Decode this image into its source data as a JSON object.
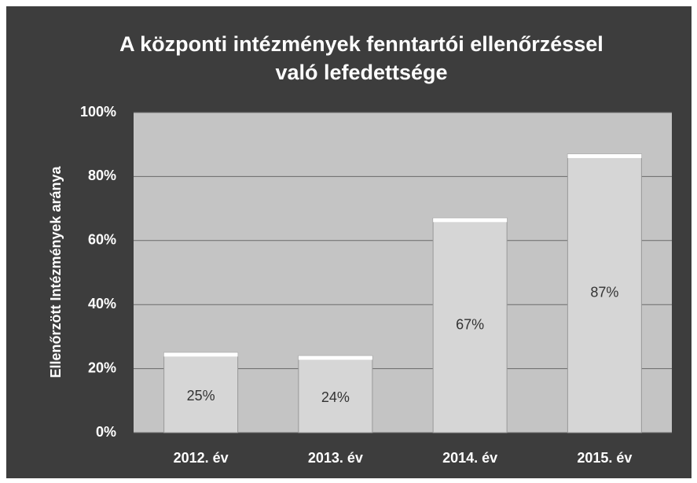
{
  "chart_data": {
    "type": "bar",
    "title": "A központi intézmények fenntartói ellenőrzéssel való lefedettsége",
    "y_label": "Ellenőrzött Intézmények aránya",
    "categories": [
      "2012. év",
      "2013. év",
      "2014. év",
      "2015. év"
    ],
    "values": [
      25,
      24,
      67,
      87
    ],
    "value_labels": [
      "25%",
      "24%",
      "67%",
      "87%"
    ],
    "color": "#d6d6d6",
    "ylim": [
      0,
      100
    ],
    "yticks": [
      {
        "value": 0,
        "label": "0%"
      },
      {
        "value": 20,
        "label": "20%"
      },
      {
        "value": 40,
        "label": "40%"
      },
      {
        "value": 60,
        "label": "60%"
      },
      {
        "value": 80,
        "label": "80%"
      },
      {
        "value": 100,
        "label": "100%"
      }
    ],
    "grid": true
  }
}
